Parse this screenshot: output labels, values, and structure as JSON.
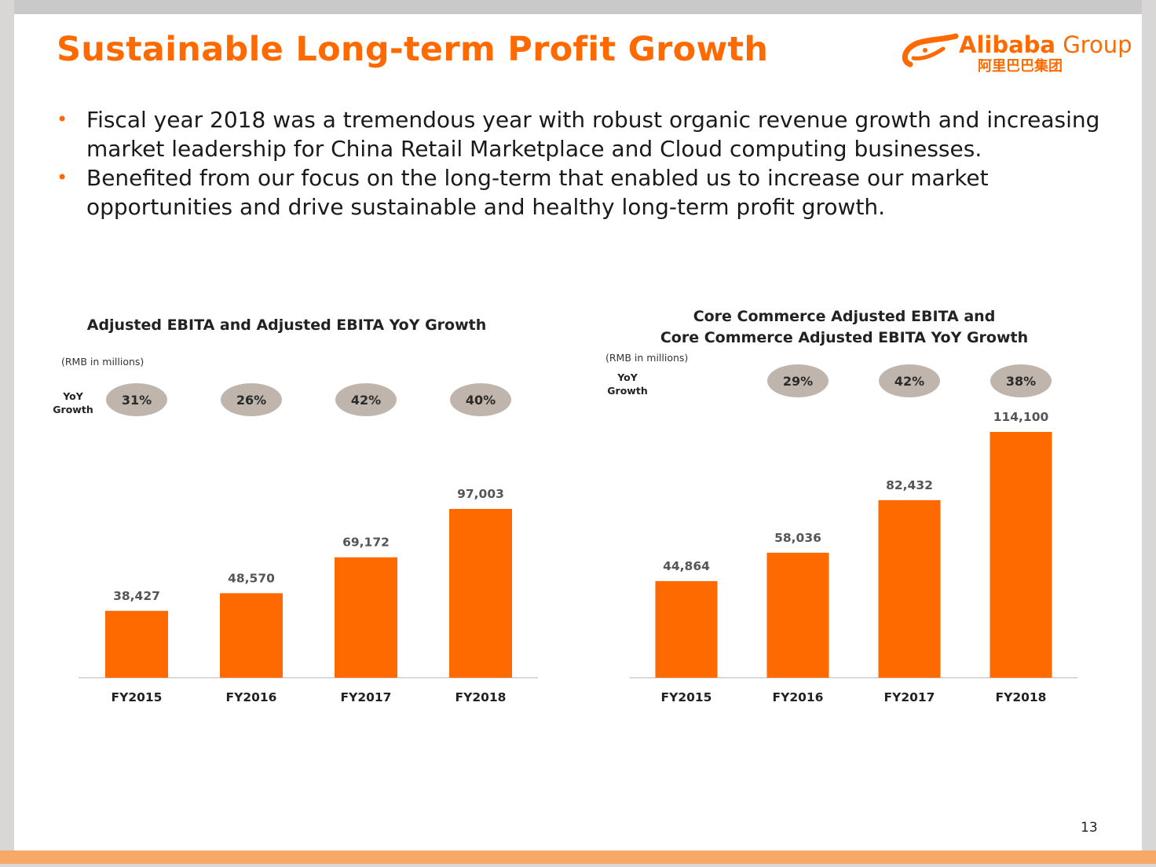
{
  "title": "Sustainable Long-term Profit Growth",
  "logo": {
    "word_bold": "Alibaba",
    "word_light": " Group",
    "cn": "阿里巴巴集团"
  },
  "bullets": [
    "Fiscal year 2018 was a tremendous year with robust organic revenue growth and increasing market leadership for China Retail Marketplace and Cloud computing businesses.",
    "Benefited from our focus on the long-term that enabled us to increase our market opportunities and drive sustainable and healthy long-term profit growth."
  ],
  "page_number": "13",
  "colors": {
    "accent": "#ff6a00",
    "pill": "#bfb5ac",
    "axis": "#d9d9d9"
  },
  "chart_data": [
    {
      "type": "bar",
      "title": "Adjusted EBITA and Adjusted EBITA YoY Growth",
      "unit": "(RMB in millions)",
      "yoy_label_1": "YoY",
      "yoy_label_2": "Growth",
      "categories": [
        "FY2015",
        "FY2016",
        "FY2017",
        "FY2018"
      ],
      "values": [
        38427,
        48570,
        69172,
        97003
      ],
      "value_labels": [
        "38,427",
        "48,570",
        "69,172",
        "97,003"
      ],
      "yoy_growth": [
        "31%",
        "26%",
        "42%",
        "40%"
      ],
      "ylim": [
        0,
        120000
      ],
      "grid": false
    },
    {
      "type": "bar",
      "title_line1": "Core Commerce Adjusted EBITA and",
      "title_line2": "Core Commerce Adjusted EBITA YoY Growth",
      "unit": "(RMB in millions)",
      "yoy_label_1": "YoY",
      "yoy_label_2": "Growth",
      "categories": [
        "FY2015",
        "FY2016",
        "FY2017",
        "FY2018"
      ],
      "values": [
        44864,
        58036,
        82432,
        114100
      ],
      "value_labels": [
        "44,864",
        "58,036",
        "82,432",
        "114,100"
      ],
      "yoy_growth": [
        "",
        "29%",
        "42%",
        "38%"
      ],
      "ylim": [
        0,
        114100
      ],
      "grid": false
    }
  ]
}
